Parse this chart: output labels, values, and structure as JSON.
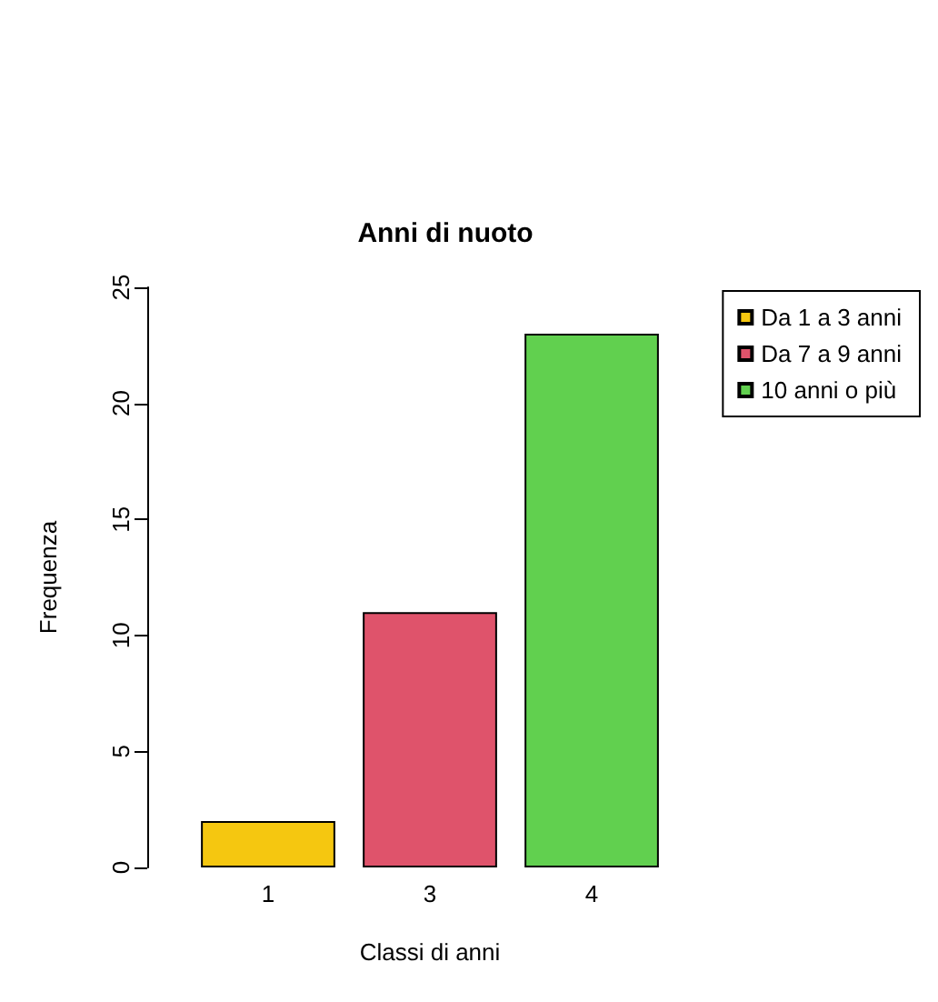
{
  "chart_data": {
    "type": "bar",
    "title": "Anni di nuoto",
    "xlabel": "Classi di anni",
    "ylabel": "Frequenza",
    "categories": [
      "1",
      "3",
      "4"
    ],
    "stacked": true,
    "series": [
      {
        "name": "Da 1 a 3 anni",
        "color": "#f5c710",
        "values": [
          2,
          null,
          null
        ]
      },
      {
        "name": "Da 7 a 9 anni",
        "color": "#df536b",
        "values": [
          null,
          11,
          null
        ]
      },
      {
        "name": "10 anni o più",
        "color": "#61d04f",
        "values": [
          null,
          null,
          23
        ]
      }
    ],
    "ylim": [
      0,
      25
    ],
    "yticks": [
      0,
      5,
      10,
      15,
      20,
      25
    ],
    "grid": false,
    "legend": "top right"
  }
}
